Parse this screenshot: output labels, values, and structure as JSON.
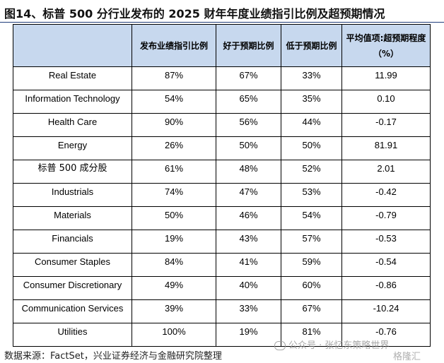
{
  "title": "图14、标普 500 分行业发布的 2025 财年年度业绩指引比例及超预期情况",
  "table": {
    "headers": [
      "",
      "发布业绩指引比例",
      "好于预期比例",
      "低于预期比例",
      "平均值项:超预期程度（%）"
    ],
    "rows": [
      {
        "sector": "Real Estate",
        "guidance": "87%",
        "better": "67%",
        "worse": "33%",
        "avg": "11.99"
      },
      {
        "sector": "Information Technology",
        "guidance": "54%",
        "better": "65%",
        "worse": "35%",
        "avg": "0.10"
      },
      {
        "sector": "Health Care",
        "guidance": "90%",
        "better": "56%",
        "worse": "44%",
        "avg": "-0.17"
      },
      {
        "sector": "Energy",
        "guidance": "26%",
        "better": "50%",
        "worse": "50%",
        "avg": "81.91"
      },
      {
        "sector": "标普 500 成分股",
        "guidance": "61%",
        "better": "48%",
        "worse": "52%",
        "avg": "2.01"
      },
      {
        "sector": "Industrials",
        "guidance": "74%",
        "better": "47%",
        "worse": "53%",
        "avg": "-0.42"
      },
      {
        "sector": "Materials",
        "guidance": "50%",
        "better": "46%",
        "worse": "54%",
        "avg": "-0.79"
      },
      {
        "sector": "Financials",
        "guidance": "19%",
        "better": "43%",
        "worse": "57%",
        "avg": "-0.53"
      },
      {
        "sector": "Consumer Staples",
        "guidance": "84%",
        "better": "41%",
        "worse": "59%",
        "avg": "-0.54"
      },
      {
        "sector": "Consumer Discretionary",
        "guidance": "49%",
        "better": "40%",
        "worse": "60%",
        "avg": "-0.86"
      },
      {
        "sector": "Communication Services",
        "guidance": "39%",
        "better": "33%",
        "worse": "67%",
        "avg": "-10.24"
      },
      {
        "sector": "Utilities",
        "guidance": "100%",
        "better": "19%",
        "worse": "81%",
        "avg": "-0.76"
      }
    ]
  },
  "source": "数据来源：FactSet，兴业证券经济与金融研究院整理",
  "watermark": "公众号 · 张忆东策略世界",
  "logo": "格隆汇",
  "colors": {
    "header_bg": "#c7d8ee",
    "rule": "#1f3d7a"
  }
}
